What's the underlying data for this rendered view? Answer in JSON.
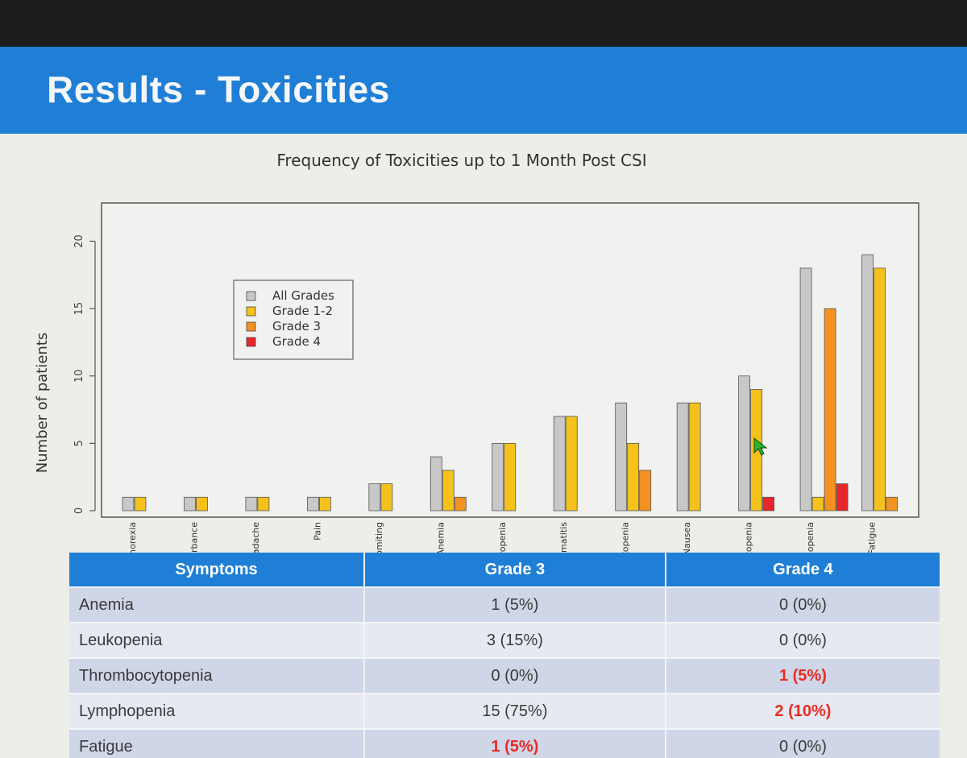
{
  "slide": {
    "title": "Results - Toxicities"
  },
  "colors": {
    "header_blue": "#1f7fd6",
    "highlight_red": "#ec2b22"
  },
  "chart_data": {
    "type": "bar",
    "title": "Frequency of Toxicities up to 1 Month Post CSI",
    "xlabel": "",
    "ylabel": "Number of patients",
    "ylim": [
      0,
      22
    ],
    "yticks": [
      0,
      5,
      10,
      15,
      20
    ],
    "legend_position": "top-left",
    "categories": [
      "Anorexia",
      "Gait disturbance",
      "Headache",
      "Pain",
      "Vomiting",
      "Anemia",
      "Neutropenia",
      "Radiation dermatitis",
      "Leukopenia",
      "Nausea",
      "Thrombocytopenia",
      "Lymphopenia",
      "Fatigue"
    ],
    "series": [
      {
        "name": "All Grades",
        "color": "#c8c8c8",
        "values": [
          1,
          1,
          1,
          1,
          2,
          4,
          5,
          7,
          8,
          8,
          10,
          18,
          19
        ]
      },
      {
        "name": "Grade 1-2",
        "color": "#f5c21c",
        "values": [
          1,
          1,
          1,
          1,
          2,
          3,
          5,
          7,
          5,
          8,
          9,
          1,
          18
        ]
      },
      {
        "name": "Grade 3",
        "color": "#f39220",
        "values": [
          0,
          0,
          0,
          0,
          0,
          1,
          0,
          0,
          3,
          0,
          0,
          15,
          1
        ]
      },
      {
        "name": "Grade 4",
        "color": "#e8262a",
        "values": [
          0,
          0,
          0,
          0,
          0,
          0,
          0,
          0,
          0,
          0,
          1,
          2,
          0
        ]
      }
    ]
  },
  "table": {
    "headers": [
      "Symptoms",
      "Grade 3",
      "Grade 4"
    ],
    "rows": [
      {
        "symptom": "Anemia",
        "grade3": "1 (5%)",
        "grade4": "0 (0%)"
      },
      {
        "symptom": "Leukopenia",
        "grade3": "3 (15%)",
        "grade4": "0 (0%)"
      },
      {
        "symptom": "Thrombocytopenia",
        "grade3": "0 (0%)",
        "grade4": "1 (5%)"
      },
      {
        "symptom": "Lymphopenia",
        "grade3": "15 (75%)",
        "grade4": "2 (10%)"
      },
      {
        "symptom": "Fatigue",
        "grade3": "1 (5%)",
        "grade4": "0 (0%)"
      }
    ]
  }
}
